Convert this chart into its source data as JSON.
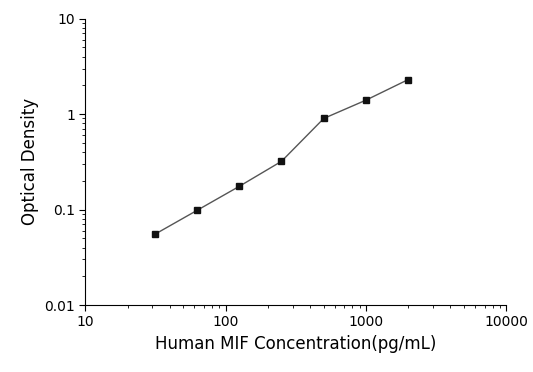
{
  "x": [
    31.25,
    62.5,
    125,
    250,
    500,
    1000,
    2000
  ],
  "y": [
    0.055,
    0.098,
    0.175,
    0.32,
    0.9,
    1.4,
    2.3
  ],
  "xlabel": "Human MIF Concentration(pg/mL)",
  "ylabel": "Optical Density",
  "xlim": [
    10,
    10000
  ],
  "ylim": [
    0.01,
    10
  ],
  "xticks": [
    10,
    100,
    1000,
    10000
  ],
  "xtick_labels": [
    "10",
    "100",
    "1000",
    "10000"
  ],
  "yticks": [
    0.01,
    0.1,
    1,
    10
  ],
  "ytick_labels": [
    "0.01",
    "0.1",
    "1",
    "10"
  ],
  "line_color": "#555555",
  "marker_color": "#111111",
  "marker": "s",
  "marker_size": 5,
  "line_width": 1.0,
  "background_color": "#ffffff",
  "xlabel_fontsize": 12,
  "ylabel_fontsize": 12,
  "tick_fontsize": 10
}
